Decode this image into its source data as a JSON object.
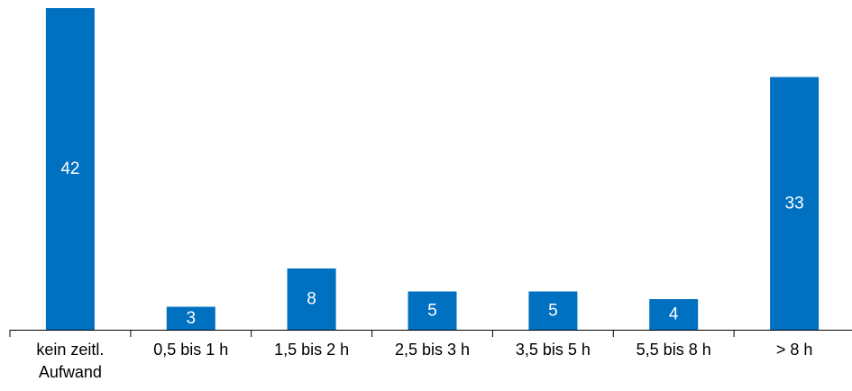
{
  "chart_data": {
    "type": "bar",
    "categories": [
      [
        "kein zeitl.",
        "Aufwand"
      ],
      [
        "0,5 bis 1 h"
      ],
      [
        "1,5 bis 2 h"
      ],
      [
        "2,5 bis 3 h"
      ],
      [
        "3,5 bis 5 h"
      ],
      [
        "5,5 bis 8 h"
      ],
      [
        "> 8 h"
      ]
    ],
    "values": [
      42,
      3,
      8,
      5,
      5,
      4,
      33
    ],
    "data_labels": [
      "42",
      "3",
      "8",
      "5",
      "5",
      "4",
      "33"
    ],
    "title": "",
    "xlabel": "",
    "ylabel": "",
    "ylim": [
      0,
      42
    ],
    "grid": false,
    "legend": "none",
    "colors": {
      "bar": "#0070C0",
      "axis": "#000000",
      "data_label": "#ffffff"
    }
  }
}
